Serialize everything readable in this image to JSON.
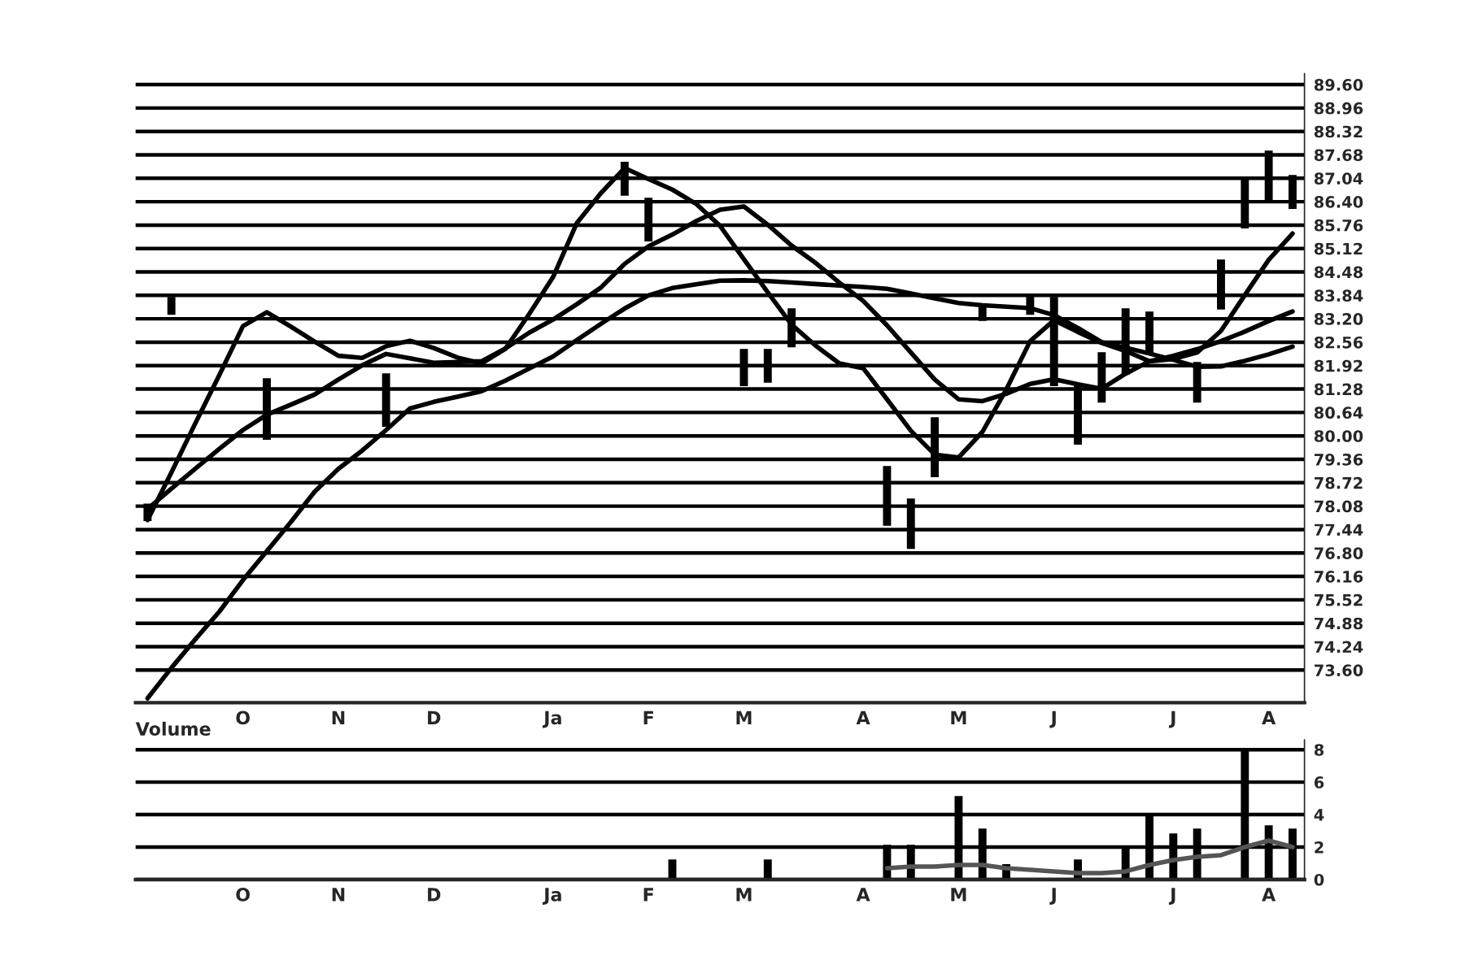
{
  "chart_data": [
    {
      "type": "line",
      "grid": "y",
      "ylim": [
        72.71,
        89.9
      ],
      "categories": [
        null,
        null,
        null,
        null,
        "O",
        null,
        null,
        null,
        "N",
        null,
        null,
        null,
        "D",
        null,
        null,
        null,
        null,
        "Ja",
        null,
        null,
        null,
        "F",
        null,
        null,
        null,
        "M",
        null,
        null,
        null,
        null,
        "A",
        null,
        null,
        null,
        "M",
        null,
        null,
        null,
        "J",
        null,
        null,
        null,
        null,
        "J",
        null,
        null,
        null,
        "A",
        null
      ],
      "yticks": [
        {
          "value": 73.6,
          "label": "73.60"
        },
        {
          "value": 74.24,
          "label": "74.24"
        },
        {
          "value": 74.88,
          "label": "74.88"
        },
        {
          "value": 75.52,
          "label": "75.52"
        },
        {
          "value": 76.16,
          "label": "76.16"
        },
        {
          "value": 76.8,
          "label": "76.80"
        },
        {
          "value": 77.44,
          "label": "77.44"
        },
        {
          "value": 78.08,
          "label": "78.08"
        },
        {
          "value": 78.72,
          "label": "78.72"
        },
        {
          "value": 79.36,
          "label": "79.36"
        },
        {
          "value": 80.0,
          "label": "80.00"
        },
        {
          "value": 80.64,
          "label": "80.64"
        },
        {
          "value": 81.28,
          "label": "81.28"
        },
        {
          "value": 81.92,
          "label": "81.92"
        },
        {
          "value": 82.56,
          "label": "82.56"
        },
        {
          "value": 83.2,
          "label": "83.20"
        },
        {
          "value": 83.84,
          "label": "83.84"
        },
        {
          "value": 84.48,
          "label": "84.48"
        },
        {
          "value": 85.12,
          "label": "85.12"
        },
        {
          "value": 85.76,
          "label": "85.76"
        },
        {
          "value": 86.4,
          "label": "86.40"
        },
        {
          "value": 87.04,
          "label": "87.04"
        },
        {
          "value": 87.68,
          "label": "87.68"
        },
        {
          "value": 88.32,
          "label": "88.32"
        },
        {
          "value": 88.96,
          "label": "88.96"
        },
        {
          "value": 89.6,
          "label": "89.60"
        }
      ],
      "series": [
        {
          "color": "#000000",
          "values": [
            77.7,
            79.0,
            80.34,
            81.65,
            83.0,
            83.38,
            82.99,
            82.58,
            82.19,
            82.13,
            82.45,
            82.6,
            82.4,
            82.14,
            81.98,
            82.38,
            83.33,
            84.34,
            85.82,
            86.63,
            87.32,
            87.02,
            86.73,
            86.34,
            85.74,
            84.83,
            83.92,
            83.04,
            82.47,
            81.98,
            81.85,
            81.0,
            80.14,
            79.49,
            79.41,
            80.11,
            81.27,
            82.59,
            83.16,
            82.84,
            82.54,
            82.32,
            82.04,
            82.1,
            82.28,
            82.87,
            83.85,
            84.81,
            85.53
          ]
        },
        {
          "color": "#000000",
          "values": [
            78.0,
            78.56,
            79.1,
            79.64,
            80.16,
            80.58,
            80.85,
            81.13,
            81.54,
            81.93,
            82.24,
            82.12,
            82.0,
            82.02,
            82.04,
            82.39,
            82.82,
            83.18,
            83.6,
            84.05,
            84.7,
            85.18,
            85.5,
            85.87,
            86.18,
            86.27,
            85.77,
            85.2,
            84.73,
            84.19,
            83.69,
            83.02,
            82.28,
            81.54,
            81.0,
            80.95,
            81.15,
            81.42,
            81.55,
            81.41,
            81.29,
            81.7,
            82.04,
            82.19,
            82.37,
            82.59,
            82.85,
            83.14,
            83.4
          ]
        },
        {
          "color": "#000000",
          "values": [
            72.83,
            73.66,
            74.44,
            75.19,
            76.06,
            76.85,
            77.64,
            78.47,
            79.1,
            79.6,
            80.16,
            80.75,
            80.93,
            81.07,
            81.22,
            81.51,
            81.84,
            82.17,
            82.62,
            83.06,
            83.48,
            83.84,
            84.04,
            84.14,
            84.24,
            84.25,
            84.23,
            84.19,
            84.15,
            84.11,
            84.07,
            84.02,
            83.89,
            83.76,
            83.63,
            83.57,
            83.53,
            83.49,
            83.3,
            82.95,
            82.56,
            82.41,
            82.25,
            82.08,
            81.89,
            81.9,
            82.05,
            82.23,
            82.44
          ]
        },
        {
          "type": "bar",
          "color": "#000000",
          "base": [
            77.69,
            83.33,
            null,
            null,
            null,
            79.91,
            null,
            null,
            null,
            null,
            80.27,
            null,
            null,
            null,
            null,
            null,
            null,
            null,
            null,
            null,
            86.58,
            85.33,
            null,
            null,
            null,
            81.38,
            81.47,
            82.44,
            null,
            null,
            null,
            77.56,
            76.93,
            78.89,
            null,
            83.16,
            null,
            83.33,
            81.38,
            79.78,
            80.93,
            81.69,
            82.27,
            null,
            80.93,
            83.47,
            85.69,
            86.44,
            86.22
          ],
          "values": [
            0.44,
            0.45,
            null,
            null,
            null,
            1.65,
            null,
            null,
            null,
            null,
            1.42,
            null,
            null,
            null,
            null,
            null,
            null,
            null,
            null,
            null,
            0.89,
            1.16,
            null,
            null,
            null,
            0.98,
            0.89,
            1.03,
            null,
            null,
            null,
            1.6,
            1.34,
            1.6,
            null,
            0.44,
            null,
            0.49,
            2.4,
            1.6,
            1.34,
            1.78,
            1.11,
            null,
            1.07,
            1.33,
            1.33,
            1.34,
            0.89
          ]
        }
      ]
    },
    {
      "type": "bar",
      "title": "Volume",
      "grid": "y",
      "ylim": [
        0,
        8.6
      ],
      "categories": [
        null,
        null,
        null,
        null,
        "O",
        null,
        null,
        null,
        "N",
        null,
        null,
        null,
        "D",
        null,
        null,
        null,
        null,
        "Ja",
        null,
        null,
        null,
        "F",
        null,
        null,
        null,
        "M",
        null,
        null,
        null,
        null,
        "A",
        null,
        null,
        null,
        "M",
        null,
        null,
        null,
        "J",
        null,
        null,
        null,
        null,
        "J",
        null,
        null,
        null,
        "A",
        null
      ],
      "yticks": [
        0,
        2,
        4,
        6,
        8
      ],
      "series": [
        {
          "color": "#000000",
          "values": [
            null,
            null,
            null,
            null,
            null,
            null,
            null,
            null,
            null,
            null,
            null,
            null,
            null,
            null,
            null,
            null,
            null,
            null,
            null,
            null,
            null,
            null,
            1.2,
            null,
            null,
            null,
            1.2,
            null,
            null,
            null,
            null,
            2.1,
            2.1,
            null,
            5.1,
            3.1,
            0.9,
            null,
            null,
            1.2,
            null,
            1.9,
            4.0,
            2.8,
            3.1,
            null,
            8.0,
            3.3,
            3.1
          ]
        },
        {
          "type": "line",
          "color": "#555555",
          "values": [
            null,
            null,
            null,
            null,
            null,
            null,
            null,
            null,
            null,
            null,
            null,
            null,
            null,
            null,
            null,
            null,
            null,
            null,
            null,
            null,
            null,
            null,
            null,
            null,
            null,
            null,
            null,
            null,
            null,
            null,
            null,
            0.7,
            0.8,
            0.8,
            0.9,
            0.9,
            0.7,
            0.6,
            0.5,
            0.4,
            0.4,
            0.5,
            0.9,
            1.2,
            1.4,
            1.5,
            2.0,
            2.4,
            2.0
          ]
        }
      ]
    }
  ]
}
